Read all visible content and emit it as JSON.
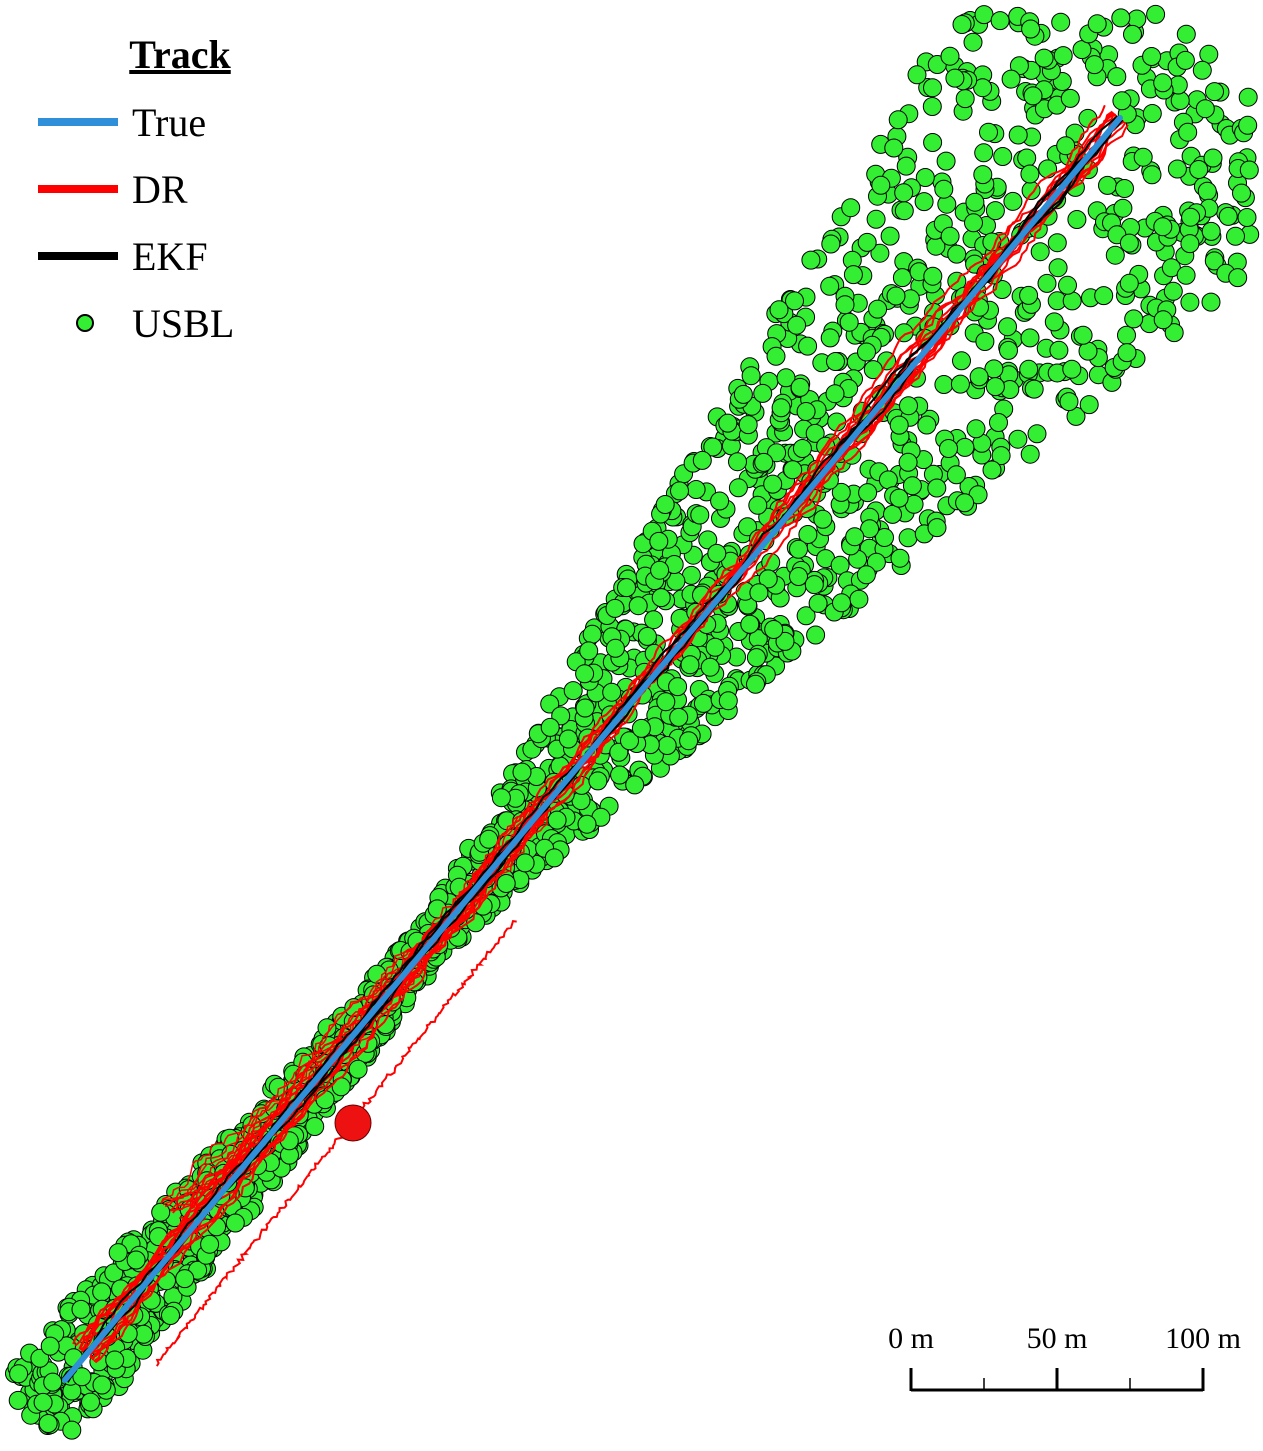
{
  "legend": {
    "title": "Track",
    "items": [
      {
        "label": "True",
        "color": "#2f8fd8",
        "kind": "line"
      },
      {
        "label": "DR",
        "color": "#ff0000",
        "kind": "line"
      },
      {
        "label": "EKF",
        "color": "#000000",
        "kind": "line"
      },
      {
        "label": "USBL",
        "color": "#33ee33",
        "kind": "dot"
      }
    ]
  },
  "scale_bar": {
    "ticks": [
      {
        "value": 0,
        "label": "0 m"
      },
      {
        "value": 50,
        "label": "50 m"
      },
      {
        "value": 100,
        "label": "100 m"
      }
    ]
  }
}
